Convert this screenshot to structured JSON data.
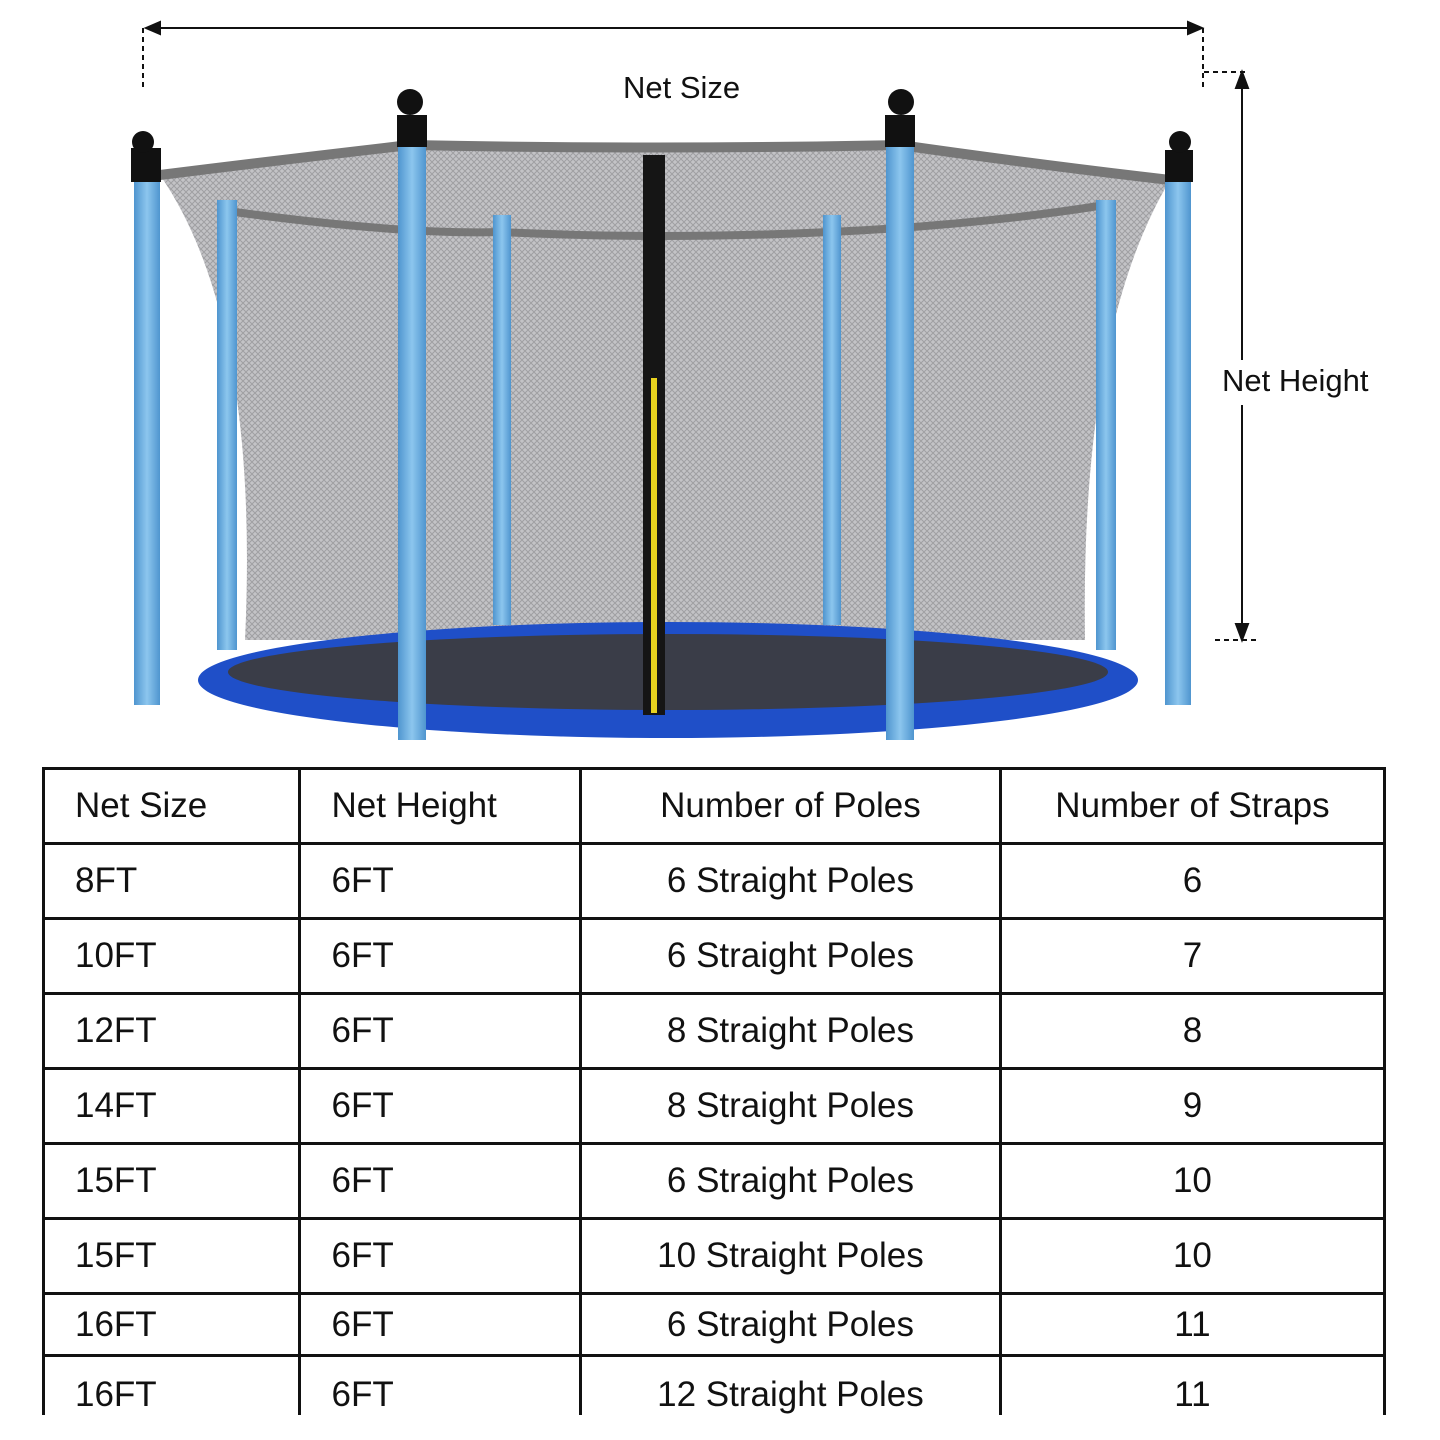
{
  "diagram": {
    "width_label": "Net Size",
    "height_label": "Net Height",
    "colors": {
      "poles": "#6aaee0",
      "pad": "#1f4fc8",
      "net": "#9a9a9c",
      "zipper_accent": "#e8d21f"
    }
  },
  "table": {
    "headers": [
      "Net Size",
      "Net Height",
      "Number of Poles",
      "Number of Straps"
    ],
    "rows": [
      [
        "8FT",
        "6FT",
        "6 Straight Poles",
        "6"
      ],
      [
        "10FT",
        "6FT",
        "6 Straight Poles",
        "7"
      ],
      [
        "12FT",
        "6FT",
        "8 Straight Poles",
        "8"
      ],
      [
        "14FT",
        "6FT",
        "8 Straight Poles",
        "9"
      ],
      [
        "15FT",
        "6FT",
        "6 Straight Poles",
        "10"
      ],
      [
        "15FT",
        "6FT",
        "10 Straight Poles",
        "10"
      ],
      [
        "16FT",
        "6FT",
        "6 Straight Poles",
        "11"
      ],
      [
        "16FT",
        "6FT",
        "12 Straight Poles",
        "11"
      ]
    ]
  }
}
